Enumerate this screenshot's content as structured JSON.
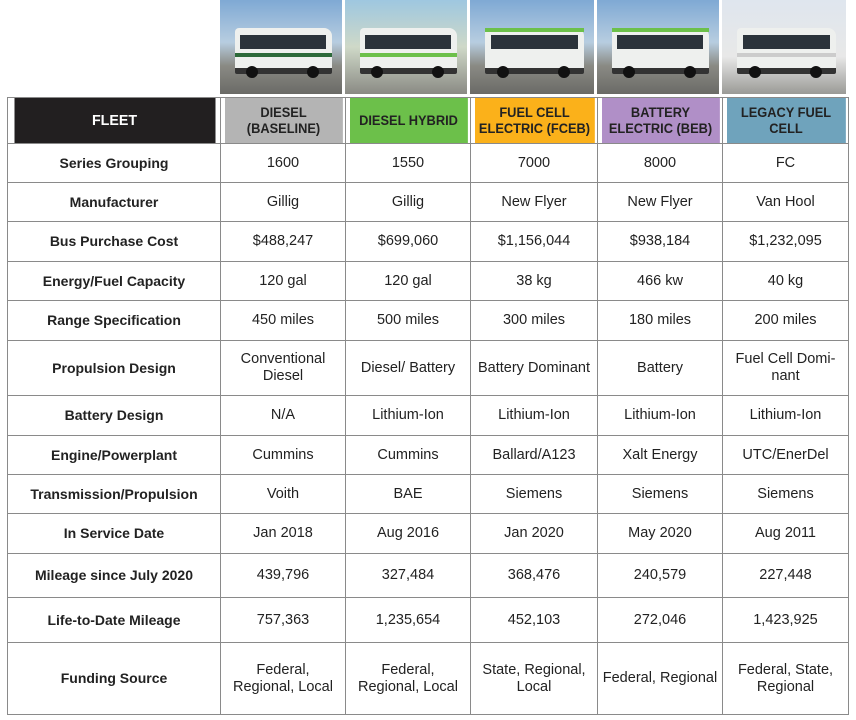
{
  "columns": [
    {
      "label": "DIESEL (BASELINE)",
      "color": "#b4b4b4"
    },
    {
      "label": "DIESEL HYBRID",
      "color": "#6cc04a"
    },
    {
      "label": "FUEL CELL ELECTRIC (FCEB)",
      "color": "#fbb11a"
    },
    {
      "label": "BATTERY ELECTRIC (BEB)",
      "color": "#b08fc7"
    },
    {
      "label": "LEGACY FUEL CELL",
      "color": "#6fa3bc"
    }
  ],
  "header": {
    "fleet": "FLEET"
  },
  "rows": [
    {
      "label": "Series Grouping",
      "values": [
        "1600",
        "1550",
        "7000",
        "8000",
        "FC"
      ]
    },
    {
      "label": "Manufacturer",
      "values": [
        "Gillig",
        "Gillig",
        "New Flyer",
        "New Flyer",
        "Van Hool"
      ]
    },
    {
      "label": "Bus Purchase Cost",
      "values": [
        "$488,247",
        "$699,060",
        "$1,156,044",
        "$938,184",
        "$1,232,095"
      ]
    },
    {
      "label": "Energy/Fuel Capacity",
      "values": [
        "120 gal",
        "120 gal",
        "38 kg",
        "466 kw",
        "40 kg"
      ]
    },
    {
      "label": "Range Specification",
      "values": [
        "450 miles",
        "500 miles",
        "300 miles",
        "180 miles",
        "200 miles"
      ]
    },
    {
      "label": "Propulsion Design",
      "values": [
        "Conventional Diesel",
        "Diesel/ Battery",
        "Battery Dominant",
        "Battery",
        "Fuel Cell Domi-nant"
      ]
    },
    {
      "label": "Battery Design",
      "values": [
        "N/A",
        "Lithium-Ion",
        "Lithium-Ion",
        "Lithium-Ion",
        "Lithium-Ion"
      ]
    },
    {
      "label": "Engine/Powerplant",
      "values": [
        "Cummins",
        "Cummins",
        "Ballard/A123",
        "Xalt Energy",
        "UTC/EnerDel"
      ]
    },
    {
      "label": "Transmission/Propulsion",
      "values": [
        "Voith",
        "BAE",
        "Siemens",
        "Siemens",
        "Siemens"
      ]
    },
    {
      "label": "In Service Date",
      "values": [
        "Jan 2018",
        "Aug 2016",
        "Jan 2020",
        "May 2020",
        "Aug 2011"
      ]
    },
    {
      "label": "Mileage since July 2020",
      "values": [
        "439,796",
        "327,484",
        "368,476",
        "240,579",
        "227,448"
      ]
    },
    {
      "label": "Life-to-Date Mileage",
      "values": [
        "757,363",
        "1,235,654",
        "452,103",
        "272,046",
        "1,423,925"
      ]
    },
    {
      "label": "Funding Source",
      "values": [
        "Federal, Regional, Local",
        "Federal, Regional, Local",
        "State, Regional, Local",
        "Federal, Regional",
        "Federal, State, Regional"
      ]
    }
  ]
}
